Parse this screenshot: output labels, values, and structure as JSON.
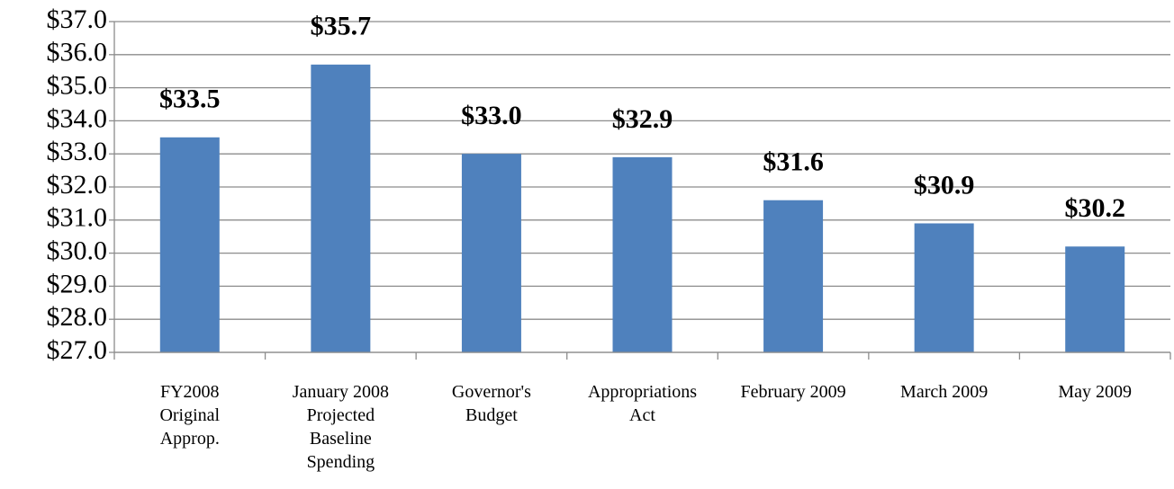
{
  "chart_data": {
    "type": "bar",
    "categories": [
      [
        "FY2008",
        "Original",
        "Approp."
      ],
      [
        "January 2008",
        "Projected",
        "Baseline",
        "Spending"
      ],
      [
        "Governor's",
        "Budget"
      ],
      [
        "Appropriations",
        "Act"
      ],
      [
        "February 2009"
      ],
      [
        "March 2009"
      ],
      [
        "May 2009"
      ]
    ],
    "values": [
      33.5,
      35.7,
      33.0,
      32.9,
      31.6,
      30.9,
      30.2
    ],
    "value_labels": [
      "$33.5",
      "$35.7",
      "$33.0",
      "$32.9",
      "$31.6",
      "$30.9",
      "$30.2"
    ],
    "color": "#4f81bd",
    "ylim": [
      27,
      37
    ],
    "yticks": [
      {
        "value": 27,
        "label": "$27.0"
      },
      {
        "value": 28,
        "label": "$28.0"
      },
      {
        "value": 29,
        "label": "$29.0"
      },
      {
        "value": 30,
        "label": "$30.0"
      },
      {
        "value": 31,
        "label": "$31.0"
      },
      {
        "value": 32,
        "label": "$32.0"
      },
      {
        "value": 33,
        "label": "$33.0"
      },
      {
        "value": 34,
        "label": "$34.0"
      },
      {
        "value": 35,
        "label": "$35.0"
      },
      {
        "value": 36,
        "label": "$36.0"
      },
      {
        "value": 37,
        "label": "$37.0"
      }
    ],
    "grid": true
  }
}
